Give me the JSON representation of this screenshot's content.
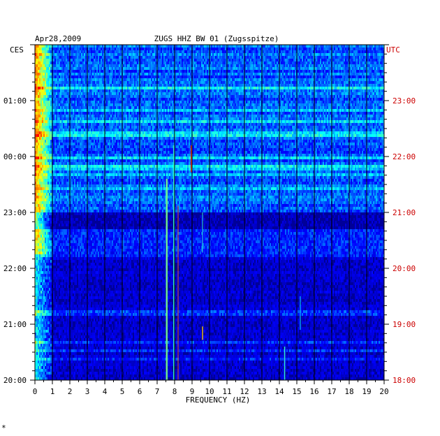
{
  "chart_data": {
    "type": "heatmap",
    "title": "ZUGS HHZ BW 01 (Zugsspitze)",
    "date_label": "Apr28,2009",
    "xlabel": "FREQUENCY (HZ)",
    "xlim": [
      0,
      20
    ],
    "x_ticks": [
      "0",
      "1",
      "2",
      "3",
      "4",
      "5",
      "6",
      "7",
      "8",
      "9",
      "10",
      "11",
      "12",
      "13",
      "14",
      "15",
      "16",
      "17",
      "18",
      "19",
      "20"
    ],
    "left_axis_label": "CES",
    "left_ticks": [
      "01:00",
      "00:00",
      "23:00",
      "22:00",
      "21:00",
      "20:00"
    ],
    "right_axis_label": "UTC",
    "right_ticks": [
      "23:00",
      "22:00",
      "21:00",
      "20:00",
      "19:00",
      "18:00"
    ],
    "time_span_hours": 6,
    "colormap": [
      "#00007f",
      "#0000ff",
      "#00ffff",
      "#ffff00",
      "#ff0000"
    ],
    "right_axis_color": "#cc0000",
    "vertical_gridlines": true
  },
  "footer_mark": "*"
}
